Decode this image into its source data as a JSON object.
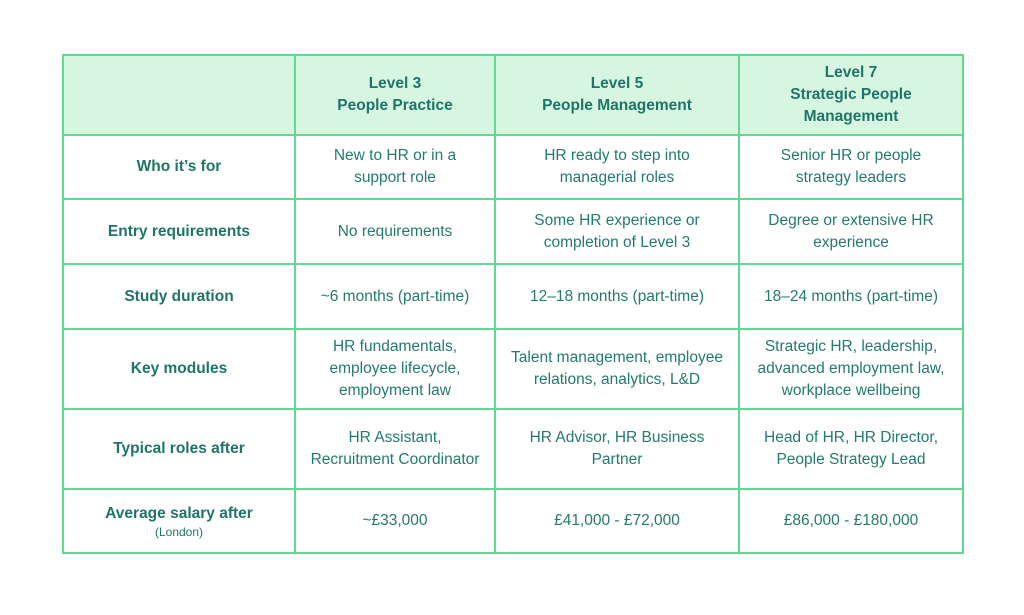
{
  "table": {
    "columns": [
      {
        "level": "Level 3",
        "name": "People Practice"
      },
      {
        "level": "Level 5",
        "name": "People Management"
      },
      {
        "level": "Level 7",
        "name": "Strategic People Management"
      }
    ],
    "rows": [
      {
        "label": "Who it’s for",
        "cells": [
          "New to HR or in a support role",
          "HR ready to step into managerial roles",
          "Senior HR or people strategy leaders"
        ]
      },
      {
        "label": "Entry requirements",
        "cells": [
          "No requirements",
          "Some HR experience or completion of Level 3",
          "Degree or extensive HR experience"
        ]
      },
      {
        "label": "Study duration",
        "cells": [
          "~6 months (part-time)",
          "12–18 months (part-time)",
          "18–24 months (part-time)"
        ]
      },
      {
        "label": "Key modules",
        "cells": [
          "HR fundamentals, employee lifecycle, employment law",
          "Talent management, employee relations, analytics, L&D",
          "Strategic HR, leadership, advanced employment law, workplace wellbeing"
        ]
      },
      {
        "label": "Typical roles after",
        "cells": [
          "HR Assistant, Recruitment Coordinator",
          "HR Advisor, HR Business Partner",
          "Head of HR, HR Director, People Strategy Lead"
        ]
      },
      {
        "label": "Average salary after",
        "note": "(London)",
        "cells": [
          "~£33,000",
          "£41,000 - £72,000",
          "£86,000 - £180,000"
        ]
      }
    ]
  }
}
